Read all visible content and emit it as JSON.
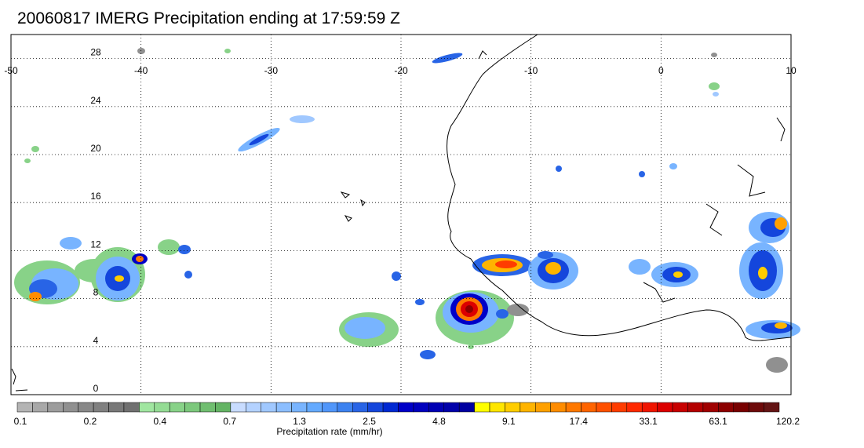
{
  "title": "20060817 IMERG Precipitation ending at 17:59:59 Z",
  "map": {
    "lon_range": [
      -50,
      10
    ],
    "lat_range": [
      0,
      30
    ],
    "lon_ticks": [
      "-50",
      "-40",
      "-30",
      "-20",
      "-10",
      "0",
      "10"
    ],
    "lat_ticks": [
      "0",
      "4",
      "8",
      "12",
      "16",
      "20",
      "24",
      "28"
    ],
    "grid": "dotted"
  },
  "colorbar": {
    "label": "Precipitation rate (mm/hr)",
    "tick_labels": [
      "0.1",
      "0.2",
      "0.4",
      "0.7",
      "1.3",
      "2.5",
      "4.8",
      "9.1",
      "17.4",
      "33.1",
      "63.1",
      "120.2"
    ],
    "colors": [
      "#b4b4b4",
      "#a8a8a8",
      "#9c9c9c",
      "#909090",
      "#888888",
      "#808080",
      "#787878",
      "#707070",
      "#a0e6a0",
      "#94dc94",
      "#88d288",
      "#7cc87c",
      "#70be70",
      "#64b464",
      "#c8dcff",
      "#b4d2ff",
      "#a0c8ff",
      "#8cbeff",
      "#78b4ff",
      "#64aaff",
      "#5096fa",
      "#3c82f0",
      "#2864e6",
      "#1446dc",
      "#0028d2",
      "#0000c8",
      "#0000be",
      "#0000b4",
      "#0000aa",
      "#0000a0",
      "#ffff00",
      "#ffe600",
      "#ffcd00",
      "#ffb400",
      "#ffa000",
      "#ff8c00",
      "#ff7800",
      "#ff6400",
      "#ff5000",
      "#ff3c00",
      "#ff2800",
      "#f01400",
      "#dc0000",
      "#c80000",
      "#b40000",
      "#a00000",
      "#8c0000",
      "#780000",
      "#6e0a0a",
      "#641414"
    ]
  },
  "colors": {
    "coastline": "#000000",
    "grid": "#000000",
    "frame": "#000000"
  }
}
